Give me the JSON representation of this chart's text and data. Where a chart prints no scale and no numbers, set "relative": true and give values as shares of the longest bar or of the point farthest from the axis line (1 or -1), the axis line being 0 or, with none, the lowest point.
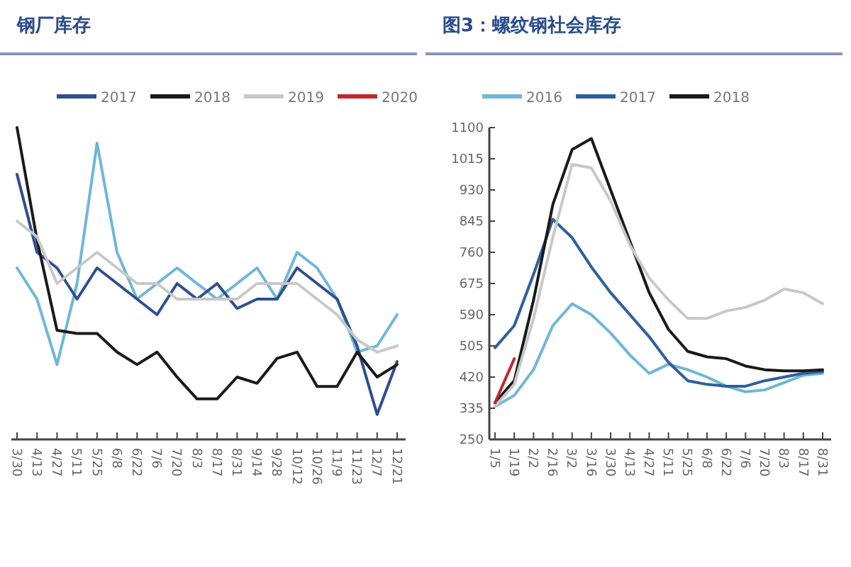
{
  "chart_data": [
    {
      "type": "line",
      "title": "钢厂库存",
      "relative": true,
      "legend": "top",
      "grid": false,
      "categories": [
        "3/30",
        "4/13",
        "4/27",
        "5/11",
        "5/25",
        "6/8",
        "6/22",
        "7/6",
        "7/20",
        "8/3",
        "8/17",
        "8/31",
        "9/14",
        "9/28",
        "10/12",
        "10/26",
        "11/9",
        "11/23",
        "12/7",
        "12/21"
      ],
      "series": [
        {
          "color": "#6fb7d8",
          "values": [
            0.55,
            0.45,
            0.24,
            0.5,
            0.95,
            0.6,
            0.45,
            0.5,
            0.55,
            0.5,
            0.45,
            0.5,
            0.55,
            0.45,
            0.6,
            0.55,
            0.45,
            0.28,
            0.3,
            0.4
          ]
        },
        {
          "name": "2017",
          "color": "#2f4f8f",
          "values": [
            0.85,
            0.6,
            0.55,
            0.45,
            0.55,
            0.5,
            0.45,
            0.4,
            0.5,
            0.45,
            0.5,
            0.42,
            0.45,
            0.45,
            0.55,
            0.5,
            0.45,
            0.3,
            0.08,
            0.25
          ]
        },
        {
          "name": "2018",
          "color": "#1a1a1a",
          "values": [
            1.0,
            0.64,
            0.35,
            0.34,
            0.34,
            0.28,
            0.24,
            0.28,
            0.2,
            0.13,
            0.13,
            0.2,
            0.18,
            0.26,
            0.28,
            0.17,
            0.17,
            0.28,
            0.2,
            0.24
          ]
        },
        {
          "name": "2019",
          "color": "#c8c8c8",
          "values": [
            0.7,
            0.65,
            0.5,
            0.55,
            0.6,
            0.55,
            0.5,
            0.5,
            0.45,
            0.45,
            0.45,
            0.45,
            0.5,
            0.5,
            0.5,
            0.45,
            0.4,
            0.32,
            0.28,
            0.3
          ]
        },
        {
          "name": "2020",
          "color": "#c0282c",
          "values": [
            null,
            null,
            null,
            null,
            null,
            null,
            null,
            null,
            null,
            null,
            null,
            null,
            null,
            null,
            null,
            null,
            null,
            null,
            null,
            null
          ]
        }
      ]
    },
    {
      "type": "line",
      "title": "图3：螺纹钢社会库存",
      "legend": "top",
      "grid": false,
      "ylim": [
        250,
        1100
      ],
      "yticks": [
        250,
        335,
        420,
        505,
        590,
        675,
        760,
        845,
        930,
        1015,
        1100
      ],
      "categories": [
        "1/5",
        "1/19",
        "2/2",
        "2/16",
        "3/2",
        "3/16",
        "3/30",
        "4/13",
        "4/27",
        "5/11",
        "5/25",
        "6/8",
        "6/22",
        "7/6",
        "7/20",
        "8/3",
        "8/17",
        "8/31"
      ],
      "series": [
        {
          "name": "2016",
          "color": "#6fb7d8",
          "values": [
            340,
            370,
            440,
            560,
            620,
            590,
            540,
            480,
            430,
            455,
            440,
            420,
            395,
            380,
            385,
            405,
            425,
            430
          ]
        },
        {
          "name": "2017",
          "color": "#2f5f9f",
          "values": [
            500,
            560,
            700,
            850,
            800,
            720,
            650,
            590,
            530,
            460,
            410,
            400,
            395,
            395,
            410,
            420,
            430,
            435
          ]
        },
        {
          "name": "2018",
          "color": "#1a1a1a",
          "values": [
            350,
            410,
            630,
            890,
            1040,
            1070,
            930,
            790,
            650,
            550,
            490,
            475,
            470,
            450,
            440,
            437,
            437,
            440
          ]
        },
        {
          "color": "#c8c8c8",
          "values": [
            340,
            400,
            580,
            800,
            1000,
            990,
            900,
            780,
            690,
            630,
            580,
            580,
            600,
            610,
            630,
            660,
            650,
            620
          ]
        },
        {
          "color": "#c0282c",
          "values": [
            350,
            470,
            null,
            null,
            null,
            null,
            null,
            null,
            null,
            null,
            null,
            null,
            null,
            null,
            null,
            null,
            null,
            null
          ]
        }
      ]
    }
  ]
}
